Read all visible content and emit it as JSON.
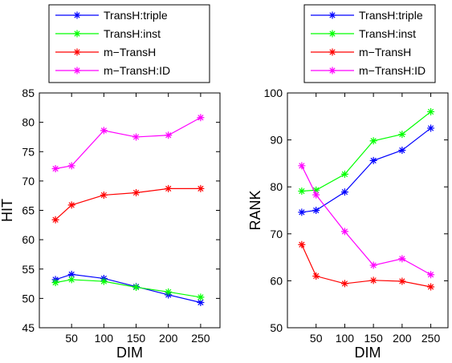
{
  "chart_data": [
    {
      "type": "line",
      "xlabel": "DIM",
      "ylabel": "HIT",
      "ylim": [
        45,
        85
      ],
      "yticks": [
        45,
        50,
        55,
        60,
        65,
        70,
        75,
        80,
        85
      ],
      "xlim": [
        0,
        280
      ],
      "xticks": [
        50,
        100,
        150,
        200,
        250
      ],
      "grid": false,
      "legend_position": "top",
      "x": [
        25,
        50,
        100,
        150,
        200,
        250
      ],
      "series": [
        {
          "name": "TransH:triple",
          "color": "#0000ff",
          "values": [
            53.2,
            54.1,
            53.4,
            52.0,
            50.6,
            49.3
          ]
        },
        {
          "name": "TransH:inst",
          "color": "#00ff00",
          "values": [
            52.7,
            53.2,
            52.9,
            51.9,
            51.1,
            50.2
          ]
        },
        {
          "name": "m−TransH",
          "color": "#ff0000",
          "values": [
            63.4,
            65.9,
            67.6,
            68.0,
            68.7,
            68.7
          ]
        },
        {
          "name": "m−TransH:ID",
          "color": "#ff00ff",
          "values": [
            72.1,
            72.6,
            78.6,
            77.5,
            77.8,
            80.8
          ]
        }
      ]
    },
    {
      "type": "line",
      "xlabel": "DIM",
      "ylabel": "RANK",
      "ylim": [
        50,
        100
      ],
      "yticks": [
        50,
        60,
        70,
        80,
        90,
        100
      ],
      "xlim": [
        0,
        280
      ],
      "xticks": [
        50,
        100,
        150,
        200,
        250
      ],
      "grid": false,
      "legend_position": "top",
      "x": [
        25,
        50,
        100,
        150,
        200,
        250
      ],
      "series": [
        {
          "name": "TransH:triple",
          "color": "#0000ff",
          "values": [
            74.6,
            75.0,
            78.9,
            85.6,
            87.8,
            92.5
          ]
        },
        {
          "name": "TransH:inst",
          "color": "#00ff00",
          "values": [
            79.1,
            79.3,
            82.7,
            89.8,
            91.2,
            96.0
          ]
        },
        {
          "name": "m−TransH",
          "color": "#ff0000",
          "values": [
            67.7,
            61.0,
            59.4,
            60.1,
            59.9,
            58.7
          ]
        },
        {
          "name": "m−TransH:ID",
          "color": "#ff00ff",
          "values": [
            84.5,
            78.3,
            70.5,
            63.3,
            64.7,
            61.3
          ]
        }
      ]
    }
  ]
}
